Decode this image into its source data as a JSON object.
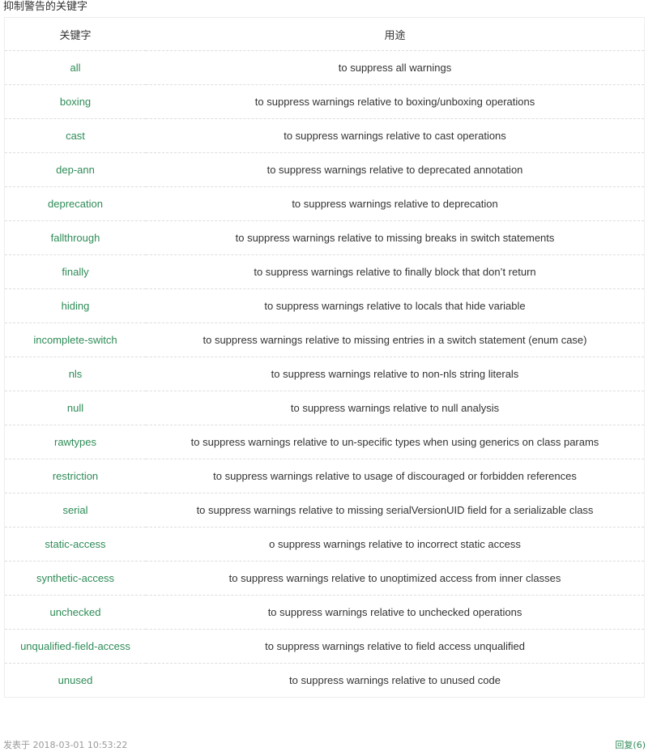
{
  "section_title": "抑制警告的关键字",
  "table": {
    "headers": [
      "关键字",
      "用途"
    ],
    "rows": [
      {
        "keyword": "all",
        "purpose": "to suppress all warnings"
      },
      {
        "keyword": "boxing",
        "purpose": "to suppress warnings relative to boxing/unboxing operations"
      },
      {
        "keyword": "cast",
        "purpose": "to suppress warnings relative to cast operations"
      },
      {
        "keyword": "dep-ann",
        "purpose": "to suppress warnings relative to deprecated annotation"
      },
      {
        "keyword": "deprecation",
        "purpose": "to suppress warnings relative to deprecation"
      },
      {
        "keyword": "fallthrough",
        "purpose": "to suppress warnings relative to missing breaks in switch statements"
      },
      {
        "keyword": "finally",
        "purpose": "to suppress warnings relative to finally block that don’t return"
      },
      {
        "keyword": "hiding",
        "purpose": "to suppress warnings relative to locals that hide variable"
      },
      {
        "keyword": "incomplete-switch",
        "purpose": "to suppress warnings relative to missing entries in a switch statement (enum case)"
      },
      {
        "keyword": "nls",
        "purpose": "to suppress warnings relative to non-nls string literals"
      },
      {
        "keyword": "null",
        "purpose": "to suppress warnings relative to null analysis"
      },
      {
        "keyword": "rawtypes",
        "purpose": "to suppress warnings relative to un-specific types when using generics on class params"
      },
      {
        "keyword": "restriction",
        "purpose": "to suppress warnings relative to usage of discouraged or forbidden references"
      },
      {
        "keyword": "serial",
        "purpose": "to suppress warnings relative to missing serialVersionUID field for a serializable class"
      },
      {
        "keyword": "static-access",
        "purpose": "o suppress warnings relative to incorrect static access"
      },
      {
        "keyword": "synthetic-access",
        "purpose": "to suppress warnings relative to unoptimized access from inner classes"
      },
      {
        "keyword": "unchecked",
        "purpose": "to suppress warnings relative to unchecked operations"
      },
      {
        "keyword": "unqualified-field-access",
        "purpose": "to suppress warnings relative to field access unqualified"
      },
      {
        "keyword": "unused",
        "purpose": "to suppress warnings relative to unused code"
      }
    ]
  },
  "footer": {
    "posted_label": "发表于 2018-03-01 10:53:22",
    "reply_label": "回复(6)"
  },
  "colors": {
    "keyword": "#2e8b57",
    "text": "#333333",
    "muted": "#999999",
    "border": "#dddddd"
  }
}
